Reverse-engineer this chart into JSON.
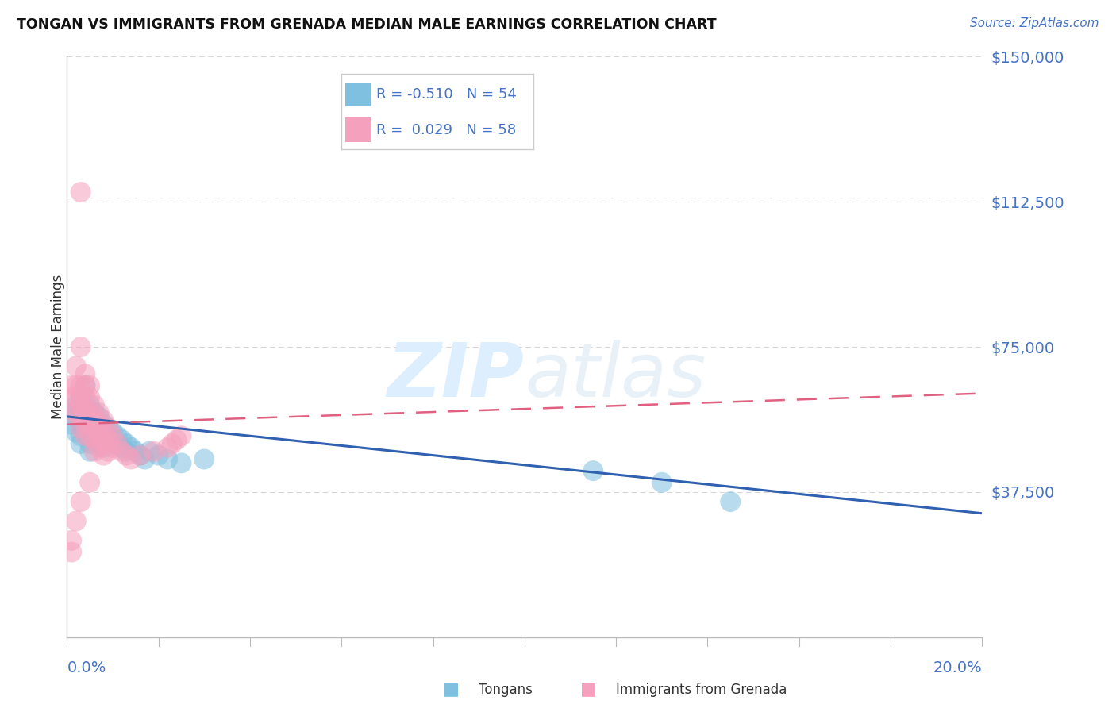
{
  "title": "TONGAN VS IMMIGRANTS FROM GRENADA MEDIAN MALE EARNINGS CORRELATION CHART",
  "source": "Source: ZipAtlas.com",
  "ylabel": "Median Male Earnings",
  "yticks": [
    0,
    37500,
    75000,
    112500,
    150000
  ],
  "ytick_labels": [
    "",
    "$37,500",
    "$75,000",
    "$112,500",
    "$150,000"
  ],
  "xlim": [
    0.0,
    0.2
  ],
  "ylim": [
    0,
    150000
  ],
  "legend_blue_r_val": "-0.510",
  "legend_blue_n_val": "54",
  "legend_pink_r_val": "0.029",
  "legend_pink_n_val": "58",
  "tongans_color": "#7fbfdf",
  "grenada_color": "#f5a0bc",
  "trend_blue_color": "#3060b0",
  "trend_pink_color": "#e06080",
  "tongans_x": [
    0.001,
    0.001,
    0.002,
    0.002,
    0.002,
    0.003,
    0.003,
    0.003,
    0.003,
    0.003,
    0.004,
    0.004,
    0.004,
    0.004,
    0.005,
    0.005,
    0.005,
    0.005,
    0.005,
    0.005,
    0.006,
    0.006,
    0.006,
    0.006,
    0.007,
    0.007,
    0.007,
    0.007,
    0.008,
    0.008,
    0.008,
    0.008,
    0.009,
    0.009,
    0.01,
    0.01,
    0.011,
    0.011,
    0.012,
    0.012,
    0.013,
    0.013,
    0.014,
    0.015,
    0.016,
    0.017,
    0.018,
    0.02,
    0.022,
    0.025,
    0.03,
    0.115,
    0.13,
    0.145
  ],
  "tongans_y": [
    55000,
    58000,
    60000,
    57000,
    53000,
    62000,
    58000,
    55000,
    52000,
    50000,
    65000,
    60000,
    57000,
    53000,
    60000,
    58000,
    56000,
    53000,
    50000,
    48000,
    58000,
    56000,
    54000,
    51000,
    57000,
    55000,
    53000,
    50000,
    55000,
    53000,
    51000,
    49000,
    54000,
    52000,
    53000,
    51000,
    52000,
    50000,
    51000,
    49000,
    50000,
    48000,
    49000,
    48000,
    47000,
    46000,
    48000,
    47000,
    46000,
    45000,
    46000,
    43000,
    40000,
    35000
  ],
  "grenada_x": [
    0.001,
    0.001,
    0.001,
    0.002,
    0.002,
    0.002,
    0.002,
    0.003,
    0.003,
    0.003,
    0.003,
    0.003,
    0.003,
    0.004,
    0.004,
    0.004,
    0.004,
    0.004,
    0.004,
    0.005,
    0.005,
    0.005,
    0.005,
    0.005,
    0.006,
    0.006,
    0.006,
    0.006,
    0.006,
    0.007,
    0.007,
    0.007,
    0.007,
    0.008,
    0.008,
    0.008,
    0.008,
    0.009,
    0.009,
    0.009,
    0.01,
    0.01,
    0.011,
    0.012,
    0.013,
    0.014,
    0.016,
    0.019,
    0.022,
    0.023,
    0.024,
    0.025,
    0.001,
    0.001,
    0.002,
    0.003,
    0.005,
    0.003
  ],
  "grenada_y": [
    65000,
    62000,
    58000,
    70000,
    65000,
    62000,
    58000,
    75000,
    65000,
    62000,
    60000,
    57000,
    54000,
    68000,
    65000,
    62000,
    58000,
    55000,
    52000,
    65000,
    62000,
    58000,
    55000,
    52000,
    60000,
    57000,
    54000,
    51000,
    48000,
    58000,
    55000,
    52000,
    49000,
    56000,
    53000,
    50000,
    47000,
    54000,
    51000,
    48000,
    52000,
    49000,
    50000,
    48000,
    47000,
    46000,
    47000,
    48000,
    49000,
    50000,
    51000,
    52000,
    25000,
    22000,
    30000,
    35000,
    40000,
    115000
  ],
  "watermark_zip": "ZIP",
  "watermark_atlas": "atlas",
  "watermark_color": "#ddeeff",
  "background_color": "#ffffff",
  "grid_color": "#cccccc"
}
